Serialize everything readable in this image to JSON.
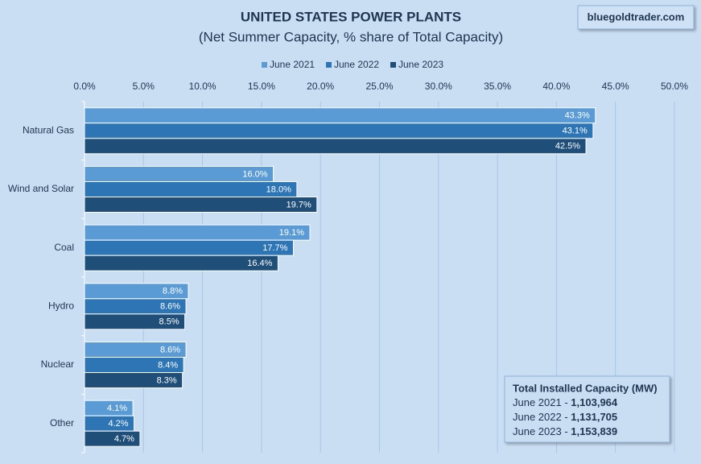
{
  "chart_data": {
    "type": "hbar",
    "title": "UNITED STATES POWER PLANTS",
    "subtitle": "(Net Summer Capacity, % share of Total Capacity)",
    "watermark": "bluegoldtrader.com",
    "categories": [
      "Natural Gas",
      "Wind and Solar",
      "Coal",
      "Hydro",
      "Nuclear",
      "Other"
    ],
    "series": [
      {
        "name": "June 2021",
        "color": "#5b9bd5",
        "values": [
          43.3,
          16.0,
          19.1,
          8.8,
          8.6,
          4.1
        ],
        "value_labels": [
          "43.3%",
          "16.0%",
          "19.1%",
          "8.8%",
          "8.6%",
          "4.1%"
        ]
      },
      {
        "name": "June 2022",
        "color": "#2e75b6",
        "values": [
          43.1,
          18.0,
          17.7,
          8.6,
          8.4,
          4.2
        ],
        "value_labels": [
          "43.1%",
          "18.0%",
          "17.7%",
          "8.6%",
          "8.4%",
          "4.2%"
        ]
      },
      {
        "name": "June 2023",
        "color": "#1f4e79",
        "values": [
          42.5,
          19.7,
          16.4,
          8.5,
          8.3,
          4.7
        ],
        "value_labels": [
          "42.5%",
          "19.7%",
          "16.4%",
          "8.5%",
          "8.3%",
          "4.7%"
        ]
      }
    ],
    "xlim": [
      0,
      50
    ],
    "xticks": [
      {
        "value": 0,
        "label": "0.0%"
      },
      {
        "value": 5,
        "label": "5.0%"
      },
      {
        "value": 10,
        "label": "10.0%"
      },
      {
        "value": 15,
        "label": "15.0%"
      },
      {
        "value": 20,
        "label": "20.0%"
      },
      {
        "value": 25,
        "label": "25.0%"
      },
      {
        "value": 30,
        "label": "30.0%"
      },
      {
        "value": 35,
        "label": "35.0%"
      },
      {
        "value": 40,
        "label": "40.0%"
      },
      {
        "value": 45,
        "label": "45.0%"
      },
      {
        "value": 50,
        "label": "50.0%"
      }
    ],
    "grid": true,
    "legend": "top",
    "capacity_box": {
      "title": "Total Installed Capacity (MW)",
      "rows": [
        {
          "label": "June 2021 -",
          "value": "1,103,964"
        },
        {
          "label": "June 2022 -",
          "value": "1,131,705"
        },
        {
          "label": "June 2023 -",
          "value": "1,153,839"
        }
      ]
    }
  }
}
